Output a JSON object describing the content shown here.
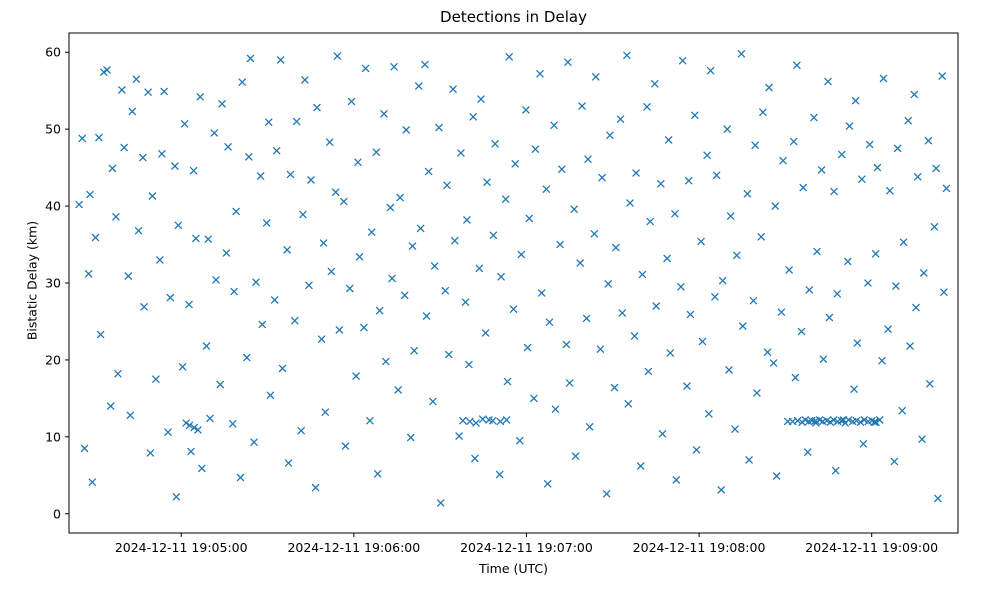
{
  "chart_data": {
    "type": "scatter",
    "title": "Detections in Delay",
    "xlabel": "Time (UTC)",
    "ylabel": "Bistatic Delay (km)",
    "marker": "x",
    "marker_color": "#1f77b4",
    "x_tick_labels": [
      "2024-12-11 19:05:00",
      "2024-12-11 19:06:00",
      "2024-12-11 19:07:00",
      "2024-12-11 19:08:00",
      "2024-12-11 19:09:00"
    ],
    "x_ticks": [
      60,
      120,
      180,
      240,
      300
    ],
    "x_domain_seconds": [
      21,
      330
    ],
    "yticks": [
      0,
      10,
      20,
      30,
      40,
      50,
      60
    ],
    "ylim": [
      -2.5,
      62.5
    ],
    "grid": false,
    "legend": "none",
    "points": [
      [
        24.5,
        40.2
      ],
      [
        25.6,
        48.8
      ],
      [
        26.4,
        8.5
      ],
      [
        27.8,
        31.2
      ],
      [
        28.3,
        41.5
      ],
      [
        29.1,
        4.1
      ],
      [
        30.2,
        35.9
      ],
      [
        31.4,
        48.9
      ],
      [
        32.0,
        23.3
      ],
      [
        33.1,
        57.4
      ],
      [
        34.2,
        57.7
      ],
      [
        35.5,
        14.0
      ],
      [
        36.1,
        44.9
      ],
      [
        37.3,
        38.6
      ],
      [
        38.0,
        18.2
      ],
      [
        39.4,
        55.1
      ],
      [
        40.2,
        47.6
      ],
      [
        41.6,
        30.9
      ],
      [
        42.3,
        12.8
      ],
      [
        43.0,
        52.3
      ],
      [
        44.4,
        56.5
      ],
      [
        45.2,
        36.8
      ],
      [
        46.7,
        46.3
      ],
      [
        47.1,
        26.9
      ],
      [
        48.5,
        54.8
      ],
      [
        49.3,
        7.9
      ],
      [
        50.0,
        41.3
      ],
      [
        51.2,
        17.5
      ],
      [
        52.6,
        33.0
      ],
      [
        53.3,
        46.8
      ],
      [
        54.1,
        54.9
      ],
      [
        55.4,
        10.6
      ],
      [
        56.2,
        28.1
      ],
      [
        57.8,
        45.2
      ],
      [
        58.3,
        2.2
      ],
      [
        59.0,
        37.5
      ],
      [
        60.5,
        19.1
      ],
      [
        61.2,
        50.7
      ],
      [
        62.7,
        27.2
      ],
      [
        63.4,
        8.1
      ],
      [
        61.7,
        11.8
      ],
      [
        62.9,
        11.5
      ],
      [
        64.5,
        11.2
      ],
      [
        65.8,
        10.9
      ],
      [
        64.3,
        44.6
      ],
      [
        65.1,
        35.8
      ],
      [
        66.6,
        54.2
      ],
      [
        67.2,
        5.9
      ],
      [
        68.8,
        21.8
      ],
      [
        69.4,
        35.7
      ],
      [
        70.0,
        12.4
      ],
      [
        71.5,
        49.5
      ],
      [
        72.1,
        30.4
      ],
      [
        73.6,
        16.8
      ],
      [
        74.2,
        53.3
      ],
      [
        75.7,
        33.9
      ],
      [
        76.3,
        47.7
      ],
      [
        77.9,
        11.7
      ],
      [
        78.4,
        28.9
      ],
      [
        79.1,
        39.3
      ],
      [
        80.6,
        4.7
      ],
      [
        81.2,
        56.1
      ],
      [
        82.8,
        20.3
      ],
      [
        83.5,
        46.4
      ],
      [
        84.1,
        59.2
      ],
      [
        85.3,
        9.3
      ],
      [
        86.0,
        30.1
      ],
      [
        87.6,
        43.9
      ],
      [
        88.2,
        24.6
      ],
      [
        89.7,
        37.8
      ],
      [
        90.4,
        50.9
      ],
      [
        91.0,
        15.4
      ],
      [
        92.5,
        27.8
      ],
      [
        93.2,
        47.2
      ],
      [
        94.6,
        59.0
      ],
      [
        95.2,
        18.9
      ],
      [
        96.8,
        34.3
      ],
      [
        97.3,
        6.6
      ],
      [
        98.0,
        44.1
      ],
      [
        99.5,
        25.1
      ],
      [
        100.1,
        51.0
      ],
      [
        101.7,
        10.8
      ],
      [
        102.3,
        38.9
      ],
      [
        103.0,
        56.4
      ],
      [
        104.4,
        29.7
      ],
      [
        105.1,
        43.4
      ],
      [
        106.7,
        3.4
      ],
      [
        107.2,
        52.8
      ],
      [
        108.8,
        22.7
      ],
      [
        109.5,
        35.2
      ],
      [
        110.1,
        13.2
      ],
      [
        111.6,
        48.3
      ],
      [
        112.2,
        31.5
      ],
      [
        113.7,
        41.8
      ],
      [
        114.3,
        59.5
      ],
      [
        115.0,
        23.9
      ],
      [
        116.5,
        40.6
      ],
      [
        117.1,
        8.8
      ],
      [
        118.6,
        29.3
      ],
      [
        119.2,
        53.6
      ],
      [
        120.8,
        17.9
      ],
      [
        121.4,
        45.7
      ],
      [
        122.0,
        33.4
      ],
      [
        123.5,
        24.2
      ],
      [
        124.1,
        57.9
      ],
      [
        125.6,
        12.1
      ],
      [
        126.2,
        36.6
      ],
      [
        127.8,
        47.0
      ],
      [
        128.3,
        5.2
      ],
      [
        129.0,
        26.4
      ],
      [
        130.5,
        52.0
      ],
      [
        131.1,
        19.8
      ],
      [
        132.7,
        39.8
      ],
      [
        133.3,
        30.6
      ],
      [
        134.0,
        58.1
      ],
      [
        135.4,
        16.1
      ],
      [
        136.1,
        41.1
      ],
      [
        137.7,
        28.4
      ],
      [
        138.2,
        49.9
      ],
      [
        139.8,
        9.9
      ],
      [
        140.4,
        34.8
      ],
      [
        141.0,
        21.2
      ],
      [
        142.6,
        55.6
      ],
      [
        143.2,
        37.1
      ],
      [
        144.7,
        58.4
      ],
      [
        145.3,
        25.7
      ],
      [
        146.0,
        44.5
      ],
      [
        147.5,
        14.6
      ],
      [
        148.1,
        32.2
      ],
      [
        149.6,
        50.2
      ],
      [
        150.2,
        1.4
      ],
      [
        151.8,
        29.0
      ],
      [
        152.4,
        42.7
      ],
      [
        153.0,
        20.7
      ],
      [
        154.5,
        55.2
      ],
      [
        155.1,
        35.5
      ],
      [
        156.6,
        10.1
      ],
      [
        157.2,
        46.9
      ],
      [
        158.8,
        27.5
      ],
      [
        159.3,
        38.2
      ],
      [
        160.0,
        19.4
      ],
      [
        161.5,
        51.6
      ],
      [
        162.1,
        7.2
      ],
      [
        163.6,
        31.9
      ],
      [
        157.9,
        12.1
      ],
      [
        160.3,
        12.0
      ],
      [
        162.5,
        11.8
      ],
      [
        164.8,
        12.3
      ],
      [
        168.3,
        12.1
      ],
      [
        170.9,
        12.0
      ],
      [
        173.1,
        12.2
      ],
      [
        164.2,
        53.9
      ],
      [
        165.8,
        23.5
      ],
      [
        166.3,
        43.1
      ],
      [
        167.0,
        12.2
      ],
      [
        168.5,
        36.2
      ],
      [
        169.1,
        48.1
      ],
      [
        170.7,
        5.1
      ],
      [
        171.2,
        30.8
      ],
      [
        172.8,
        40.9
      ],
      [
        173.4,
        17.2
      ],
      [
        174.0,
        59.4
      ],
      [
        175.5,
        26.6
      ],
      [
        176.1,
        45.5
      ],
      [
        177.7,
        9.5
      ],
      [
        178.2,
        33.7
      ],
      [
        179.8,
        52.5
      ],
      [
        180.4,
        21.6
      ],
      [
        181.0,
        38.4
      ],
      [
        182.6,
        15.0
      ],
      [
        183.1,
        47.4
      ],
      [
        184.7,
        57.2
      ],
      [
        185.3,
        28.7
      ],
      [
        186.9,
        42.2
      ],
      [
        187.4,
        3.9
      ],
      [
        188.0,
        24.9
      ],
      [
        189.6,
        50.5
      ],
      [
        190.1,
        13.6
      ],
      [
        191.7,
        35.0
      ],
      [
        192.3,
        44.8
      ],
      [
        193.9,
        22.0
      ],
      [
        194.4,
        58.7
      ],
      [
        195.0,
        17.0
      ],
      [
        196.6,
        39.6
      ],
      [
        197.1,
        7.5
      ],
      [
        198.7,
        32.6
      ],
      [
        199.3,
        53.0
      ],
      [
        200.9,
        25.4
      ],
      [
        201.4,
        46.1
      ],
      [
        202.0,
        11.3
      ],
      [
        203.6,
        36.4
      ],
      [
        204.1,
        56.8
      ],
      [
        205.7,
        21.4
      ],
      [
        206.3,
        43.7
      ],
      [
        207.9,
        2.6
      ],
      [
        208.4,
        29.9
      ],
      [
        209.0,
        49.2
      ],
      [
        210.6,
        16.4
      ],
      [
        211.1,
        34.6
      ],
      [
        212.7,
        51.3
      ],
      [
        213.3,
        26.1
      ],
      [
        214.9,
        59.6
      ],
      [
        215.4,
        14.3
      ],
      [
        216.0,
        40.4
      ],
      [
        217.6,
        23.1
      ],
      [
        218.1,
        44.3
      ],
      [
        219.7,
        6.2
      ],
      [
        220.3,
        31.1
      ],
      [
        221.9,
        52.9
      ],
      [
        222.4,
        18.5
      ],
      [
        223.0,
        38.0
      ],
      [
        224.6,
        55.9
      ],
      [
        225.1,
        27.0
      ],
      [
        226.7,
        42.9
      ],
      [
        227.3,
        10.4
      ],
      [
        228.9,
        33.2
      ],
      [
        229.4,
        48.6
      ],
      [
        230.0,
        20.9
      ],
      [
        231.6,
        39.0
      ],
      [
        232.1,
        4.4
      ],
      [
        233.7,
        29.5
      ],
      [
        234.3,
        58.9
      ],
      [
        235.8,
        16.6
      ],
      [
        236.4,
        43.3
      ],
      [
        237.0,
        25.9
      ],
      [
        238.5,
        51.8
      ],
      [
        239.1,
        8.3
      ],
      [
        240.7,
        35.4
      ],
      [
        241.2,
        22.4
      ],
      [
        242.8,
        46.6
      ],
      [
        243.4,
        13.0
      ],
      [
        244.0,
        57.6
      ],
      [
        245.5,
        28.2
      ],
      [
        246.1,
        44.0
      ],
      [
        247.7,
        3.1
      ],
      [
        248.2,
        30.3
      ],
      [
        249.8,
        50.0
      ],
      [
        250.4,
        18.7
      ],
      [
        251.0,
        38.7
      ],
      [
        252.5,
        11.0
      ],
      [
        253.1,
        33.6
      ],
      [
        254.7,
        59.8
      ],
      [
        255.2,
        24.4
      ],
      [
        256.8,
        41.6
      ],
      [
        257.4,
        7.0
      ],
      [
        258.9,
        27.7
      ],
      [
        259.5,
        47.9
      ],
      [
        260.1,
        15.7
      ],
      [
        261.6,
        36.0
      ],
      [
        262.2,
        52.2
      ],
      [
        263.8,
        21.0
      ],
      [
        264.3,
        55.4
      ],
      [
        265.9,
        19.6
      ],
      [
        266.5,
        40.0
      ],
      [
        267.0,
        4.9
      ],
      [
        268.6,
        26.2
      ],
      [
        269.2,
        45.9
      ],
      [
        270.8,
        12.0
      ],
      [
        271.3,
        31.7
      ],
      [
        272.9,
        48.4
      ],
      [
        273.5,
        17.7
      ],
      [
        274.0,
        58.3
      ],
      [
        275.6,
        23.7
      ],
      [
        276.2,
        42.4
      ],
      [
        277.8,
        8.0
      ],
      [
        278.3,
        29.1
      ],
      [
        279.9,
        51.5
      ],
      [
        280.5,
        12.1
      ],
      [
        281.0,
        34.1
      ],
      [
        282.6,
        44.7
      ],
      [
        283.2,
        20.1
      ],
      [
        284.8,
        56.2
      ],
      [
        285.3,
        25.5
      ],
      [
        286.9,
        41.9
      ],
      [
        287.5,
        5.6
      ],
      [
        288.0,
        28.6
      ],
      [
        289.6,
        46.7
      ],
      [
        290.2,
        12.2
      ],
      [
        291.7,
        32.8
      ],
      [
        292.3,
        50.4
      ],
      [
        293.9,
        16.2
      ],
      [
        294.4,
        53.7
      ],
      [
        295.0,
        22.2
      ],
      [
        296.6,
        43.5
      ],
      [
        297.1,
        9.1
      ],
      [
        298.7,
        30.0
      ],
      [
        299.3,
        48.0
      ],
      [
        300.9,
        11.9
      ],
      [
        301.4,
        33.8
      ],
      [
        302.0,
        45.0
      ],
      [
        303.6,
        19.9
      ],
      [
        304.1,
        56.6
      ],
      [
        305.7,
        24.0
      ],
      [
        306.3,
        42.0
      ],
      [
        307.9,
        6.8
      ],
      [
        308.4,
        29.6
      ],
      [
        309.0,
        47.5
      ],
      [
        310.6,
        13.4
      ],
      [
        311.1,
        35.3
      ],
      [
        312.7,
        51.1
      ],
      [
        313.3,
        21.8
      ],
      [
        314.8,
        54.5
      ],
      [
        315.4,
        26.8
      ],
      [
        316.0,
        43.8
      ],
      [
        317.5,
        9.7
      ],
      [
        318.1,
        31.3
      ],
      [
        319.7,
        48.5
      ],
      [
        320.2,
        16.9
      ],
      [
        321.8,
        37.3
      ],
      [
        322.4,
        44.9
      ],
      [
        323.0,
        2.0
      ],
      [
        324.5,
        56.9
      ],
      [
        325.1,
        28.8
      ],
      [
        326.0,
        42.3
      ],
      [
        272.5,
        12.0
      ],
      [
        274.3,
        12.1
      ],
      [
        275.8,
        11.9
      ],
      [
        276.9,
        12.2
      ],
      [
        278.1,
        12.0
      ],
      [
        279.2,
        12.1
      ],
      [
        280.6,
        11.8
      ],
      [
        281.9,
        12.2
      ],
      [
        283.0,
        12.0
      ],
      [
        284.4,
        12.1
      ],
      [
        285.6,
        11.9
      ],
      [
        286.8,
        12.2
      ],
      [
        288.2,
        12.0
      ],
      [
        289.5,
        12.1
      ],
      [
        290.8,
        11.8
      ],
      [
        292.0,
        12.2
      ],
      [
        293.4,
        12.0
      ],
      [
        294.7,
        12.1
      ],
      [
        296.1,
        11.9
      ],
      [
        297.4,
        12.2
      ],
      [
        298.8,
        12.0
      ],
      [
        300.1,
        12.1
      ],
      [
        301.5,
        11.9
      ],
      [
        302.8,
        12.2
      ]
    ]
  }
}
